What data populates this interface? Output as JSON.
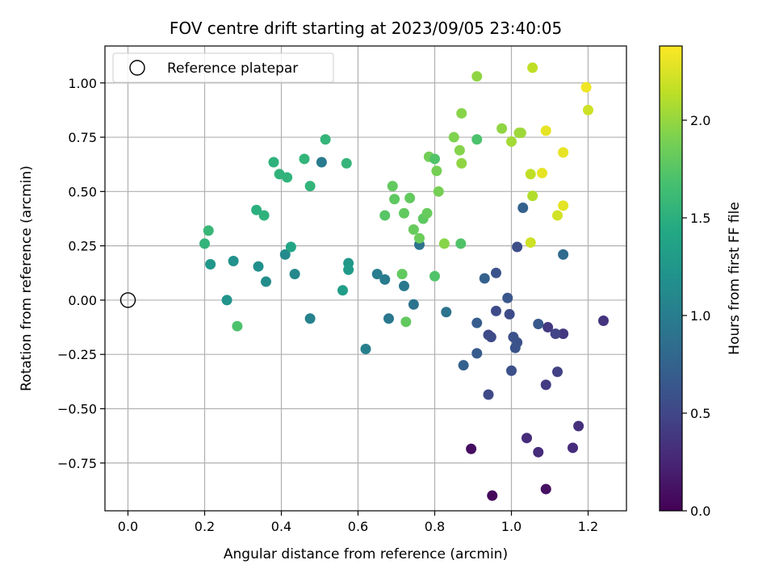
{
  "chart_data": {
    "type": "scatter",
    "title": "FOV centre drift starting at 2023/09/05 23:40:05",
    "xlabel": "Angular distance from reference (arcmin)",
    "ylabel": "Rotation from reference (arcmin)",
    "colorbar_label": "Hours from first FF file",
    "xlim": [
      -0.06,
      1.3
    ],
    "ylim": [
      -0.97,
      1.17
    ],
    "colorbar_range": [
      0,
      2.38
    ],
    "xticks": [
      0.0,
      0.2,
      0.4,
      0.6,
      0.8,
      1.0,
      1.2
    ],
    "xtick_labels": [
      "0.0",
      "0.2",
      "0.4",
      "0.6",
      "0.8",
      "1.0",
      "1.2"
    ],
    "yticks": [
      -0.75,
      -0.5,
      -0.25,
      0.0,
      0.25,
      0.5,
      0.75,
      1.0
    ],
    "ytick_labels": [
      "−0.75",
      "−0.50",
      "−0.25",
      "0.00",
      "0.25",
      "0.50",
      "0.75",
      "1.00"
    ],
    "cticks": [
      0.0,
      0.5,
      1.0,
      1.5,
      2.0
    ],
    "ctick_labels": [
      "0.0",
      "0.5",
      "1.0",
      "1.5",
      "2.0"
    ],
    "grid": true,
    "legend": {
      "placement": "top-left",
      "label": "Reference platepar"
    },
    "reference": {
      "x": 0.0,
      "y": 0.0
    },
    "colormap": [
      "#440154",
      "#482475",
      "#414487",
      "#355f8d",
      "#2a788e",
      "#21918c",
      "#22a884",
      "#44bf70",
      "#7ad151",
      "#bddf26",
      "#fde725"
    ],
    "points": [
      {
        "x": 0.95,
        "y": -0.9,
        "h": 0.05
      },
      {
        "x": 0.895,
        "y": -0.685,
        "h": 0.08
      },
      {
        "x": 1.09,
        "y": -0.87,
        "h": 0.1
      },
      {
        "x": 1.04,
        "y": -0.635,
        "h": 0.3
      },
      {
        "x": 1.07,
        "y": -0.7,
        "h": 0.3
      },
      {
        "x": 1.16,
        "y": -0.68,
        "h": 0.3
      },
      {
        "x": 1.175,
        "y": -0.58,
        "h": 0.33
      },
      {
        "x": 1.24,
        "y": -0.095,
        "h": 0.36
      },
      {
        "x": 1.135,
        "y": -0.155,
        "h": 0.38
      },
      {
        "x": 1.095,
        "y": -0.125,
        "h": 0.4
      },
      {
        "x": 1.09,
        "y": -0.39,
        "h": 0.42
      },
      {
        "x": 1.12,
        "y": -0.33,
        "h": 0.45
      },
      {
        "x": 1.115,
        "y": -0.155,
        "h": 0.48
      },
      {
        "x": 0.94,
        "y": -0.435,
        "h": 0.52
      },
      {
        "x": 0.94,
        "y": -0.16,
        "h": 0.52
      },
      {
        "x": 0.947,
        "y": -0.17,
        "h": 0.54
      },
      {
        "x": 0.96,
        "y": -0.05,
        "h": 0.55
      },
      {
        "x": 0.995,
        "y": -0.065,
        "h": 0.55
      },
      {
        "x": 1.0,
        "y": -0.325,
        "h": 0.58
      },
      {
        "x": 1.005,
        "y": -0.17,
        "h": 0.6
      },
      {
        "x": 1.015,
        "y": -0.195,
        "h": 0.6
      },
      {
        "x": 1.01,
        "y": -0.22,
        "h": 0.62
      },
      {
        "x": 1.015,
        "y": 0.245,
        "h": 0.56
      },
      {
        "x": 0.96,
        "y": 0.125,
        "h": 0.62
      },
      {
        "x": 0.99,
        "y": 0.01,
        "h": 0.64
      },
      {
        "x": 1.07,
        "y": -0.11,
        "h": 0.66
      },
      {
        "x": 0.91,
        "y": -0.245,
        "h": 0.68
      },
      {
        "x": 0.91,
        "y": -0.105,
        "h": 0.7
      },
      {
        "x": 0.875,
        "y": -0.3,
        "h": 0.72
      },
      {
        "x": 0.93,
        "y": 0.1,
        "h": 0.74
      },
      {
        "x": 1.03,
        "y": 0.425,
        "h": 0.74
      },
      {
        "x": 1.135,
        "y": 0.21,
        "h": 0.82
      },
      {
        "x": 0.83,
        "y": -0.055,
        "h": 0.9
      },
      {
        "x": 0.745,
        "y": -0.02,
        "h": 0.9
      },
      {
        "x": 0.76,
        "y": 0.255,
        "h": 0.9
      },
      {
        "x": 0.72,
        "y": 0.065,
        "h": 0.95
      },
      {
        "x": 0.68,
        "y": -0.085,
        "h": 0.95
      },
      {
        "x": 0.67,
        "y": 0.095,
        "h": 0.98
      },
      {
        "x": 0.65,
        "y": 0.12,
        "h": 1.0
      },
      {
        "x": 0.62,
        "y": -0.225,
        "h": 1.02
      },
      {
        "x": 0.505,
        "y": 0.635,
        "h": 0.98
      },
      {
        "x": 0.475,
        "y": -0.085,
        "h": 1.05
      },
      {
        "x": 0.435,
        "y": 0.12,
        "h": 1.1
      },
      {
        "x": 0.41,
        "y": 0.21,
        "h": 1.12
      },
      {
        "x": 0.36,
        "y": 0.085,
        "h": 1.15
      },
      {
        "x": 0.34,
        "y": 0.155,
        "h": 1.18
      },
      {
        "x": 0.275,
        "y": 0.18,
        "h": 1.2
      },
      {
        "x": 0.258,
        "y": 0.0,
        "h": 1.22
      },
      {
        "x": 0.215,
        "y": 0.165,
        "h": 1.25
      },
      {
        "x": 0.575,
        "y": 0.17,
        "h": 1.25
      },
      {
        "x": 0.575,
        "y": 0.14,
        "h": 1.28
      },
      {
        "x": 0.56,
        "y": 0.045,
        "h": 1.32
      },
      {
        "x": 0.425,
        "y": 0.245,
        "h": 1.4
      },
      {
        "x": 0.335,
        "y": 0.415,
        "h": 1.5
      },
      {
        "x": 0.355,
        "y": 0.39,
        "h": 1.52
      },
      {
        "x": 0.38,
        "y": 0.635,
        "h": 1.52
      },
      {
        "x": 0.395,
        "y": 0.58,
        "h": 1.53
      },
      {
        "x": 0.415,
        "y": 0.565,
        "h": 1.54
      },
      {
        "x": 0.46,
        "y": 0.65,
        "h": 1.55
      },
      {
        "x": 0.475,
        "y": 0.525,
        "h": 1.55
      },
      {
        "x": 0.515,
        "y": 0.74,
        "h": 1.56
      },
      {
        "x": 0.57,
        "y": 0.63,
        "h": 1.56
      },
      {
        "x": 0.2,
        "y": 0.26,
        "h": 1.55
      },
      {
        "x": 0.21,
        "y": 0.32,
        "h": 1.58
      },
      {
        "x": 0.285,
        "y": -0.12,
        "h": 1.7
      },
      {
        "x": 0.67,
        "y": 0.39,
        "h": 1.75
      },
      {
        "x": 0.69,
        "y": 0.525,
        "h": 1.8
      },
      {
        "x": 0.695,
        "y": 0.465,
        "h": 1.78
      },
      {
        "x": 0.715,
        "y": 0.12,
        "h": 1.8
      },
      {
        "x": 0.72,
        "y": 0.4,
        "h": 1.8
      },
      {
        "x": 0.725,
        "y": -0.1,
        "h": 1.8
      },
      {
        "x": 0.735,
        "y": 0.47,
        "h": 1.8
      },
      {
        "x": 0.745,
        "y": 0.325,
        "h": 1.82
      },
      {
        "x": 0.76,
        "y": 0.285,
        "h": 1.84
      },
      {
        "x": 0.77,
        "y": 0.375,
        "h": 1.78
      },
      {
        "x": 0.78,
        "y": 0.4,
        "h": 1.82
      },
      {
        "x": 0.785,
        "y": 0.66,
        "h": 1.86
      },
      {
        "x": 0.8,
        "y": 0.65,
        "h": 1.72
      },
      {
        "x": 0.8,
        "y": 0.11,
        "h": 1.72
      },
      {
        "x": 0.805,
        "y": 0.595,
        "h": 1.88
      },
      {
        "x": 0.81,
        "y": 0.5,
        "h": 1.88
      },
      {
        "x": 0.825,
        "y": 0.26,
        "h": 1.95
      },
      {
        "x": 0.85,
        "y": 0.75,
        "h": 1.92
      },
      {
        "x": 0.865,
        "y": 0.69,
        "h": 1.94
      },
      {
        "x": 0.87,
        "y": 0.86,
        "h": 1.95
      },
      {
        "x": 0.87,
        "y": 0.63,
        "h": 1.98
      },
      {
        "x": 0.868,
        "y": 0.26,
        "h": 1.72
      },
      {
        "x": 0.91,
        "y": 1.03,
        "h": 1.98
      },
      {
        "x": 0.91,
        "y": 0.74,
        "h": 1.7
      },
      {
        "x": 0.975,
        "y": 0.79,
        "h": 1.98
      },
      {
        "x": 1.0,
        "y": 0.73,
        "h": 2.05
      },
      {
        "x": 1.02,
        "y": 0.77,
        "h": 2.02
      },
      {
        "x": 1.025,
        "y": 0.77,
        "h": 2.03
      },
      {
        "x": 1.05,
        "y": 0.58,
        "h": 2.15
      },
      {
        "x": 1.055,
        "y": 0.48,
        "h": 2.1
      },
      {
        "x": 1.055,
        "y": 1.07,
        "h": 2.15
      },
      {
        "x": 1.05,
        "y": 0.265,
        "h": 2.2
      },
      {
        "x": 1.08,
        "y": 0.585,
        "h": 2.3
      },
      {
        "x": 1.09,
        "y": 0.78,
        "h": 2.3
      },
      {
        "x": 1.12,
        "y": 0.39,
        "h": 2.22
      },
      {
        "x": 1.135,
        "y": 0.435,
        "h": 2.28
      },
      {
        "x": 1.135,
        "y": 0.68,
        "h": 2.3
      },
      {
        "x": 1.195,
        "y": 0.98,
        "h": 2.33
      },
      {
        "x": 1.2,
        "y": 0.875,
        "h": 2.2
      }
    ]
  }
}
